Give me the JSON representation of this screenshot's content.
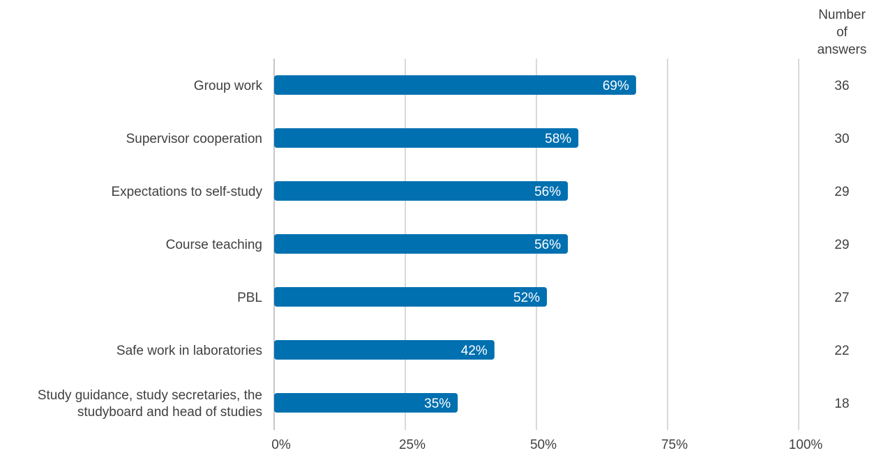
{
  "count_header": [
    "Number",
    "of",
    "answers"
  ],
  "colors": {
    "bar": "#0070b0",
    "grid": "#b3b3b3",
    "text": "#404040",
    "value_text": "#ffffff"
  },
  "chart_data": {
    "type": "bar",
    "orientation": "horizontal",
    "categories": [
      [
        "Group work"
      ],
      [
        "Supervisor cooperation"
      ],
      [
        "Expectations to self-study"
      ],
      [
        "Course teaching"
      ],
      [
        "PBL"
      ],
      [
        "Safe work in laboratories"
      ],
      [
        "Study guidance, study secretaries, the",
        "studyboard and head of studies"
      ]
    ],
    "values": [
      69,
      58,
      56,
      56,
      52,
      42,
      35
    ],
    "value_labels": [
      "69%",
      "58%",
      "56%",
      "56%",
      "52%",
      "42%",
      "35%"
    ],
    "counts": [
      "36",
      "30",
      "29",
      "29",
      "27",
      "22",
      "18"
    ],
    "xlim": [
      0,
      100
    ],
    "ticks": [
      0,
      25,
      50,
      75,
      100
    ],
    "tick_labels": [
      "0%",
      "25%",
      "50%",
      "75%",
      "100%"
    ],
    "grid": true,
    "legend": "none"
  }
}
